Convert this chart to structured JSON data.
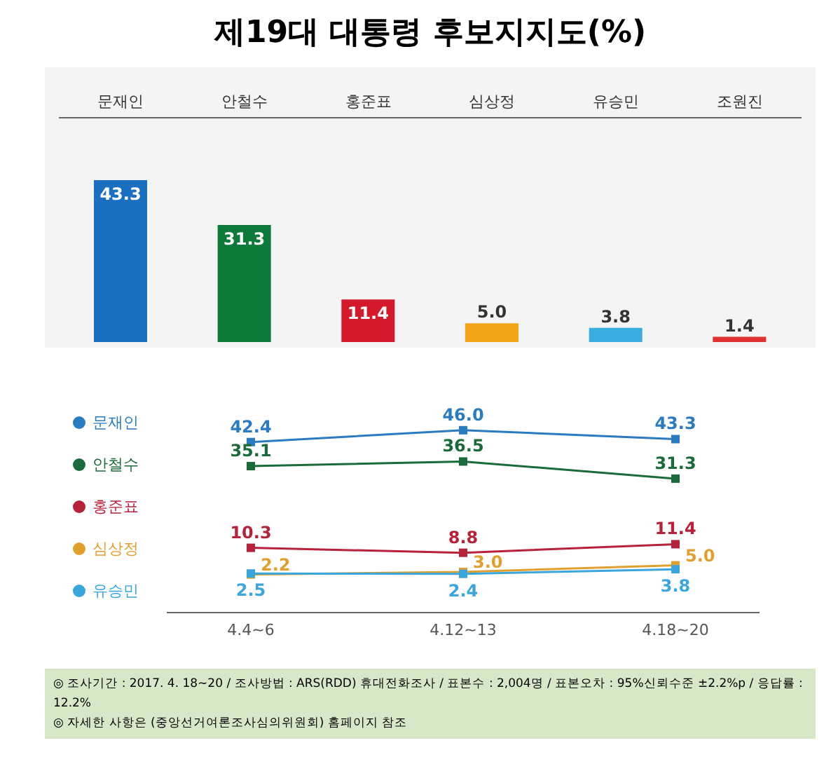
{
  "chart_data": [
    {
      "type": "bar",
      "title": "제19대 대통령 후보지지도(%)",
      "categories": [
        "문재인",
        "안철수",
        "홍준표",
        "심상정",
        "유승민",
        "조원진"
      ],
      "values": [
        43.3,
        31.3,
        11.4,
        5.0,
        3.8,
        1.4
      ],
      "value_labels": [
        "43.3",
        "31.3",
        "11.4",
        "5.0",
        "3.8",
        "1.4"
      ],
      "colors": [
        "#1a6fc0",
        "#0e7a3a",
        "#d4192c",
        "#f2a516",
        "#3aaee0",
        "#e03030"
      ]
    },
    {
      "type": "line",
      "categories": [
        "4.4~6",
        "4.12~13",
        "4.18~20"
      ],
      "series": [
        {
          "name": "문재인",
          "color": "#2a7bbf",
          "values": [
            42.4,
            46.0,
            43.3
          ],
          "value_labels": [
            "42.4",
            "46.0",
            "43.3"
          ]
        },
        {
          "name": "안철수",
          "color": "#1b6b3a",
          "values": [
            35.1,
            36.5,
            31.3
          ],
          "value_labels": [
            "35.1",
            "36.5",
            "31.3"
          ]
        },
        {
          "name": "홍준표",
          "color": "#b5223a",
          "values": [
            10.3,
            8.8,
            11.4
          ],
          "value_labels": [
            "10.3",
            "8.8",
            "11.4"
          ]
        },
        {
          "name": "심상정",
          "color": "#e0a030",
          "values": [
            2.2,
            3.0,
            5.0
          ],
          "value_labels": [
            "2.2",
            "3.0",
            "5.0"
          ]
        },
        {
          "name": "유승민",
          "color": "#3aa6dc",
          "values": [
            2.5,
            2.4,
            3.8
          ],
          "value_labels": [
            "2.5",
            "2.4",
            "3.8"
          ]
        }
      ],
      "marker": "square",
      "legend": "left",
      "annotations": [
        "◎ 조사기간 : 2017. 4. 18~20 / 조사방법 : ARS(RDD) 휴대전화조사 / 표본수 : 2,004명 / 표본오차 : 95%신뢰수준 ±2.2%p / 응답률 : 12.2%",
        "◎ 자세한 사항은 (중앙선거여론조사심의위원회) 홈페이지 참조"
      ]
    }
  ]
}
